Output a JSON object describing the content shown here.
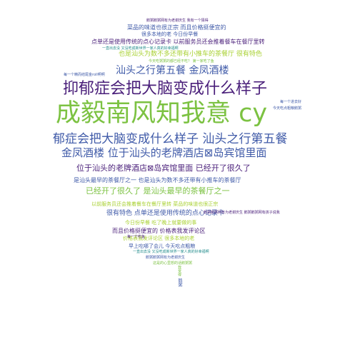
{
  "colors": {
    "green": "#7cc242",
    "lime": "#a9d133",
    "purple": "#4a1f7a",
    "blue": "#3f5aa8",
    "teal": "#1f8a8a"
  },
  "words": [
    {
      "text": "鹅粥鹅粥网有为老谢庆生 我有一个猜得",
      "color": "purple"
    },
    {
      "text": "菜品的味道也很正宗 而且价格挺便宜的",
      "color": "blue"
    },
    {
      "text": "很多本地的老 今日份早餐",
      "color": "blue"
    },
    {
      "text": "点单还是使用传统的点心记录卡 以前服务员还会推着餐车在餐厅里转",
      "color": "purple"
    },
    {
      "text": "一直出去没 又没吃成新世界一家人真的好幸福啊",
      "color": "teal"
    },
    {
      "text": "也是汕头为数不多还带有小推车的茶餐厅 很有特色",
      "color": "lime"
    },
    {
      "text": "今天吃粥粥的都已经不吃？ 第一家吃了鱼",
      "color": "green"
    },
    {
      "text": "每一个精而结尾金roll啊啊",
      "color": "blue"
    },
    {
      "text": "汕头之行第五餐 金凤酒楼",
      "color": "blue"
    },
    {
      "text": "抑郁症会把大脑变成什么样子",
      "color": "purple"
    },
    {
      "text": "成毅南风知我意 cy",
      "color": "green"
    },
    {
      "text": "郁症会把大脑变成什么样子 汕头之行第五餐",
      "color": "blue"
    },
    {
      "text": "金凤酒楼 位于汕头的老牌酒店⊠岛宾馆里面",
      "color": "blue"
    },
    {
      "text": "位于汕头的老牌酒店⊠岛宾馆里面 已经开了很久了",
      "color": "purple"
    },
    {
      "text": "是汕头最早的茶餐厅之一 也是汕头为数不多还带有小推车的茶餐厅",
      "color": "blue"
    },
    {
      "text": "已经开了很久了 是汕头最早的茶餐厅之一",
      "color": "green"
    },
    {
      "text": "以前服务员还会推着餐车在餐厅里转 菜品的味道也很正宗",
      "color": "lime"
    },
    {
      "text": "很有特色 点单还是使用传统的点心记录卡",
      "color": "blue"
    },
    {
      "text": "今日份早餐 吃了晚上就要做的事",
      "color": "lime"
    },
    {
      "text": "而且价格挺便宜的 价格表我发评论区",
      "color": "purple"
    },
    {
      "text": "价格表我发评论区 很多本地的老",
      "color": "lime"
    },
    {
      "text": "早上吃哪了会儿 今天吃点粗粮",
      "color": "blue"
    },
    {
      "text": "一直出去没 又没吃成新世界一家人真的好幸福啊",
      "color": "teal"
    },
    {
      "text": "鹅粥鹅粥网有为老谢庆生",
      "color": "blue"
    },
    {
      "text": "这是的心里想的话鹅粥粥",
      "color": "green"
    },
    {
      "text": "鹅粥鹅粥网有为老谢庆生 鹅粥鹅粥网有孩子说我",
      "color": "purple"
    },
    {
      "text": "每一个进去好",
      "color": "blue"
    },
    {
      "text": "今天吃点粗粮鹅粥",
      "color": "blue"
    },
    {
      "text": "每一个吃鱼",
      "color": "purple"
    },
    {
      "text": "我觉得",
      "color": "green"
    },
    {
      "text": "鹅粥",
      "color": "blue"
    }
  ]
}
